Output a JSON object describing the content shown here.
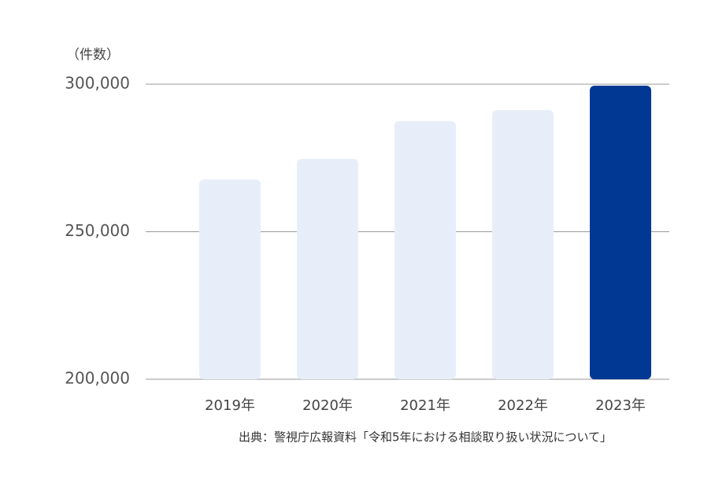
{
  "chart_data": {
    "type": "bar",
    "y_unit_label": "（件数）",
    "categories": [
      "2019年",
      "2020年",
      "2021年",
      "2022年",
      "2023年"
    ],
    "values": [
      267700,
      274700,
      287500,
      291200,
      299500
    ],
    "colors": [
      "#e8eef9",
      "#e8eef9",
      "#e8eef9",
      "#e8eef9",
      "#003893"
    ],
    "ylim": [
      200000,
      300000
    ],
    "yticks": [
      {
        "value": 200000,
        "label": "200,000"
      },
      {
        "value": 250000,
        "label": "250,000"
      },
      {
        "value": 300000,
        "label": "300,000"
      }
    ],
    "grid": true,
    "source": "出典：警視庁広報資料「令和5年における相談取り扱い状況について」"
  }
}
